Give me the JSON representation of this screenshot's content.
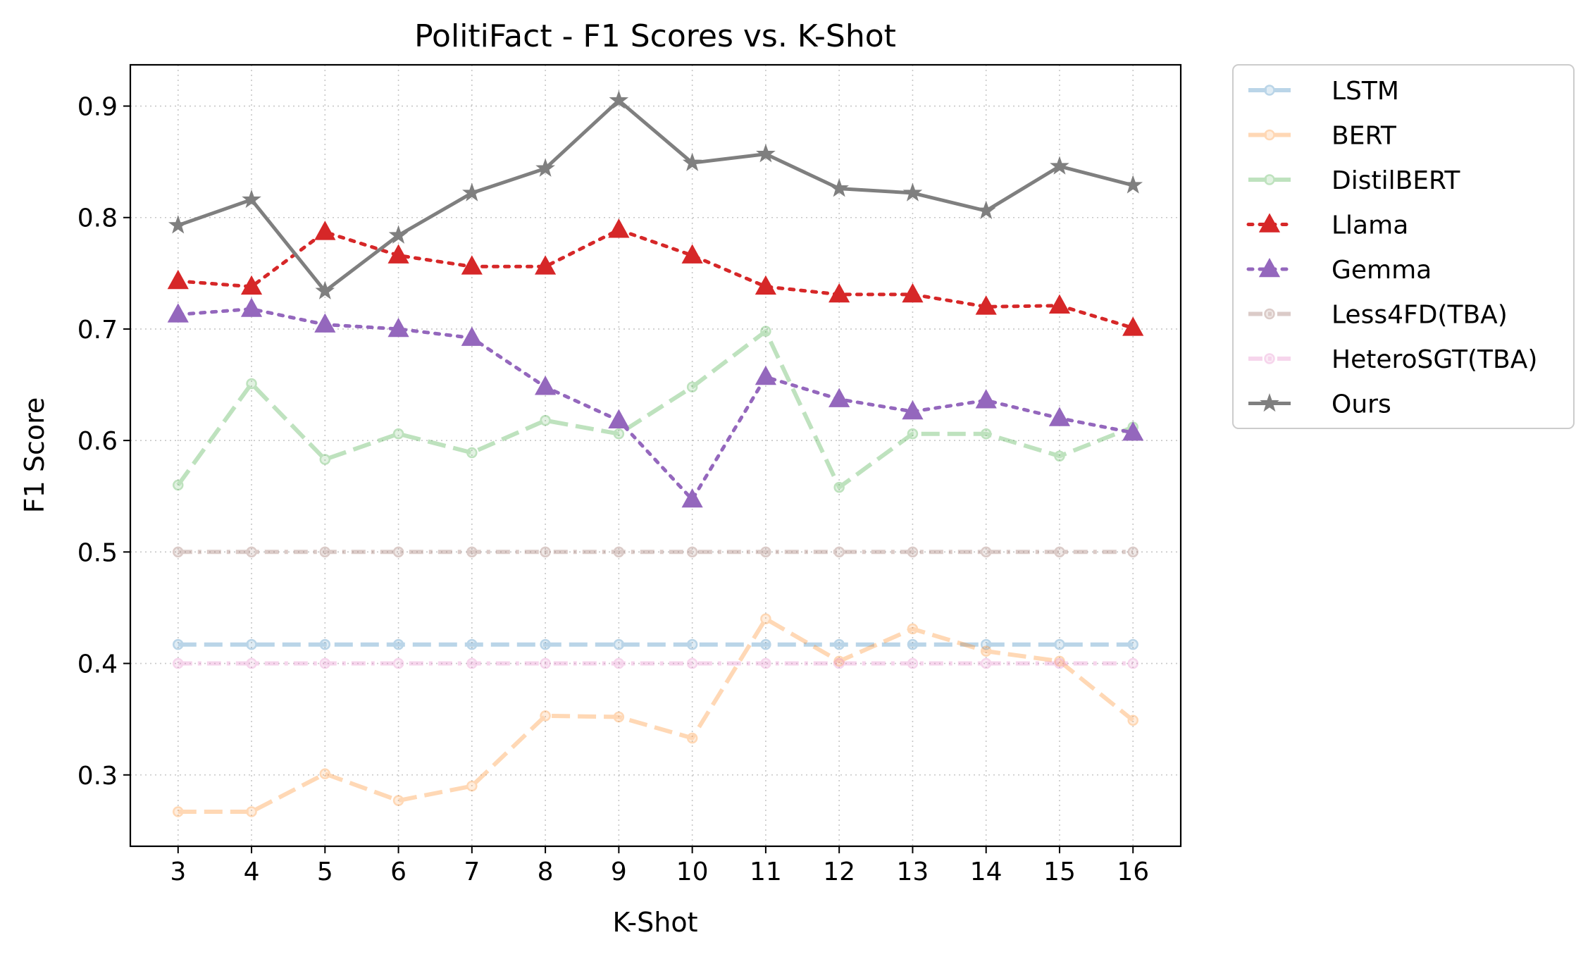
{
  "chart_data": {
    "type": "line",
    "title": "PolitiFact - F1 Scores vs. K-Shot",
    "xlabel": "K-Shot",
    "ylabel": "F1 Score",
    "x": [
      3,
      4,
      5,
      6,
      7,
      8,
      9,
      10,
      11,
      12,
      13,
      14,
      15,
      16
    ],
    "xlim": [
      2.35,
      16.65
    ],
    "ylim": [
      0.236,
      0.937
    ],
    "yticks": [
      0.3,
      0.4,
      0.5,
      0.6,
      0.7,
      0.8,
      0.9
    ],
    "grid": true,
    "legend_position": "outside-upper-right",
    "series": [
      {
        "name": "LSTM",
        "color": "#1f77b4",
        "linestyle": "dashed",
        "marker": "circle",
        "alpha": 0.3,
        "values": [
          0.417,
          0.417,
          0.417,
          0.417,
          0.417,
          0.417,
          0.417,
          0.417,
          0.417,
          0.417,
          0.417,
          0.417,
          0.417,
          0.417
        ]
      },
      {
        "name": "BERT",
        "color": "#ff7f0e",
        "linestyle": "dashed",
        "marker": "circle",
        "alpha": 0.3,
        "values": [
          0.267,
          0.267,
          0.301,
          0.277,
          0.29,
          0.353,
          0.352,
          0.333,
          0.44,
          0.402,
          0.431,
          0.411,
          0.402,
          0.349
        ]
      },
      {
        "name": "DistilBERT",
        "color": "#2ca02c",
        "linestyle": "dashed",
        "marker": "circle",
        "alpha": 0.3,
        "values": [
          0.56,
          0.651,
          0.583,
          0.606,
          0.589,
          0.618,
          0.606,
          0.648,
          0.698,
          0.558,
          0.606,
          0.606,
          0.586,
          0.612
        ]
      },
      {
        "name": "Llama",
        "color": "#d62728",
        "linestyle": "dotted",
        "marker": "triangle",
        "alpha": 1,
        "values": [
          0.743,
          0.738,
          0.787,
          0.766,
          0.756,
          0.756,
          0.789,
          0.766,
          0.738,
          0.731,
          0.731,
          0.72,
          0.721,
          0.701
        ]
      },
      {
        "name": "Gemma",
        "color": "#9467bd",
        "linestyle": "dotted",
        "marker": "triangle",
        "alpha": 1,
        "values": [
          0.713,
          0.718,
          0.704,
          0.7,
          0.692,
          0.648,
          0.618,
          0.547,
          0.657,
          0.637,
          0.626,
          0.636,
          0.62,
          0.607
        ]
      },
      {
        "name": "Less4FD(TBA)",
        "color": "#8c564b",
        "linestyle": "dashdot",
        "marker": "circle",
        "alpha": 0.3,
        "values": [
          0.5,
          0.5,
          0.5,
          0.5,
          0.5,
          0.5,
          0.5,
          0.5,
          0.5,
          0.5,
          0.5,
          0.5,
          0.5,
          0.5
        ]
      },
      {
        "name": "HeteroSGT(TBA)",
        "color": "#e377c2",
        "linestyle": "dashdot",
        "marker": "circle",
        "alpha": 0.3,
        "values": [
          0.4,
          0.4,
          0.4,
          0.4,
          0.4,
          0.4,
          0.4,
          0.4,
          0.4,
          0.4,
          0.4,
          0.4,
          0.4,
          0.4
        ]
      },
      {
        "name": "Ours",
        "color": "#7f7f7f",
        "linestyle": "solid",
        "marker": "star",
        "alpha": 1,
        "values": [
          0.793,
          0.816,
          0.734,
          0.784,
          0.822,
          0.844,
          0.905,
          0.849,
          0.857,
          0.826,
          0.822,
          0.806,
          0.846,
          0.829
        ]
      }
    ]
  }
}
